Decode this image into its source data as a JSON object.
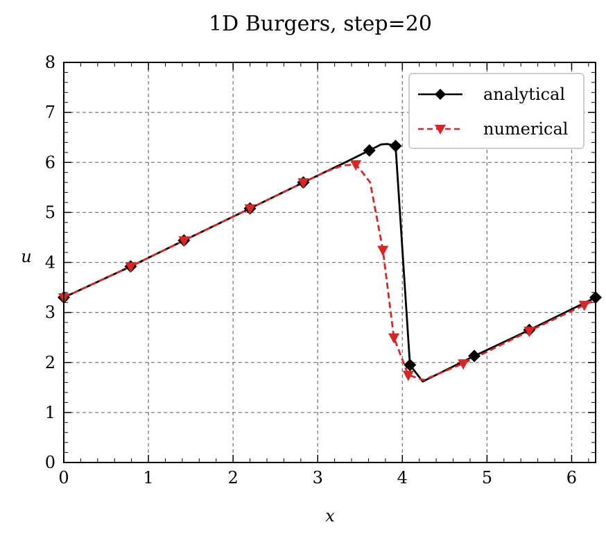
{
  "chart_data": {
    "type": "line",
    "title": "1D Burgers, step=20",
    "xlabel": "x",
    "ylabel": "u",
    "xlim": [
      0,
      6.283
    ],
    "ylim": [
      0,
      8
    ],
    "xticks": [
      0,
      1,
      2,
      3,
      4,
      5,
      6
    ],
    "yticks": [
      0,
      1,
      2,
      3,
      4,
      5,
      6,
      7,
      8
    ],
    "grid": true,
    "legend_position": "top-right",
    "series": [
      {
        "name": "analytical",
        "color": "#000000",
        "line_style": "solid",
        "marker": "diamond",
        "x": [
          0,
          0.79,
          1.42,
          2.2,
          2.83,
          3.3,
          3.61,
          3.75,
          3.82,
          3.92,
          4.09,
          4.24,
          4.85,
          5.5,
          6.283
        ],
        "y": [
          3.3,
          3.92,
          4.44,
          5.08,
          5.6,
          5.98,
          6.24,
          6.36,
          6.37,
          6.33,
          1.95,
          1.62,
          2.13,
          2.65,
          3.3
        ],
        "marker_x": [
          0,
          0.79,
          1.42,
          2.2,
          2.83,
          3.61,
          3.92,
          4.09,
          4.85,
          5.5,
          6.283
        ],
        "marker_y": [
          3.3,
          3.92,
          4.44,
          5.08,
          5.6,
          6.24,
          6.33,
          1.95,
          2.13,
          2.65,
          3.3
        ]
      },
      {
        "name": "numerical",
        "color": "#d62728",
        "line_style": "dashed",
        "marker": "triangle-down",
        "x": [
          0,
          0.79,
          1.42,
          2.2,
          2.83,
          3.1,
          3.3,
          3.45,
          3.52,
          3.62,
          3.77,
          3.9,
          4.07,
          4.25,
          4.72,
          5.5,
          6.15,
          6.283
        ],
        "y": [
          3.3,
          3.92,
          4.44,
          5.08,
          5.6,
          5.82,
          5.94,
          5.96,
          5.82,
          5.6,
          4.25,
          2.5,
          1.75,
          1.65,
          1.98,
          2.63,
          3.15,
          3.25
        ],
        "marker_x": [
          0,
          0.79,
          1.42,
          2.2,
          2.83,
          3.45,
          3.77,
          3.9,
          4.07,
          4.72,
          5.5,
          6.15
        ],
        "marker_y": [
          3.3,
          3.92,
          4.44,
          5.08,
          5.6,
          5.96,
          4.25,
          2.5,
          1.75,
          1.98,
          2.63,
          3.15
        ]
      }
    ]
  }
}
